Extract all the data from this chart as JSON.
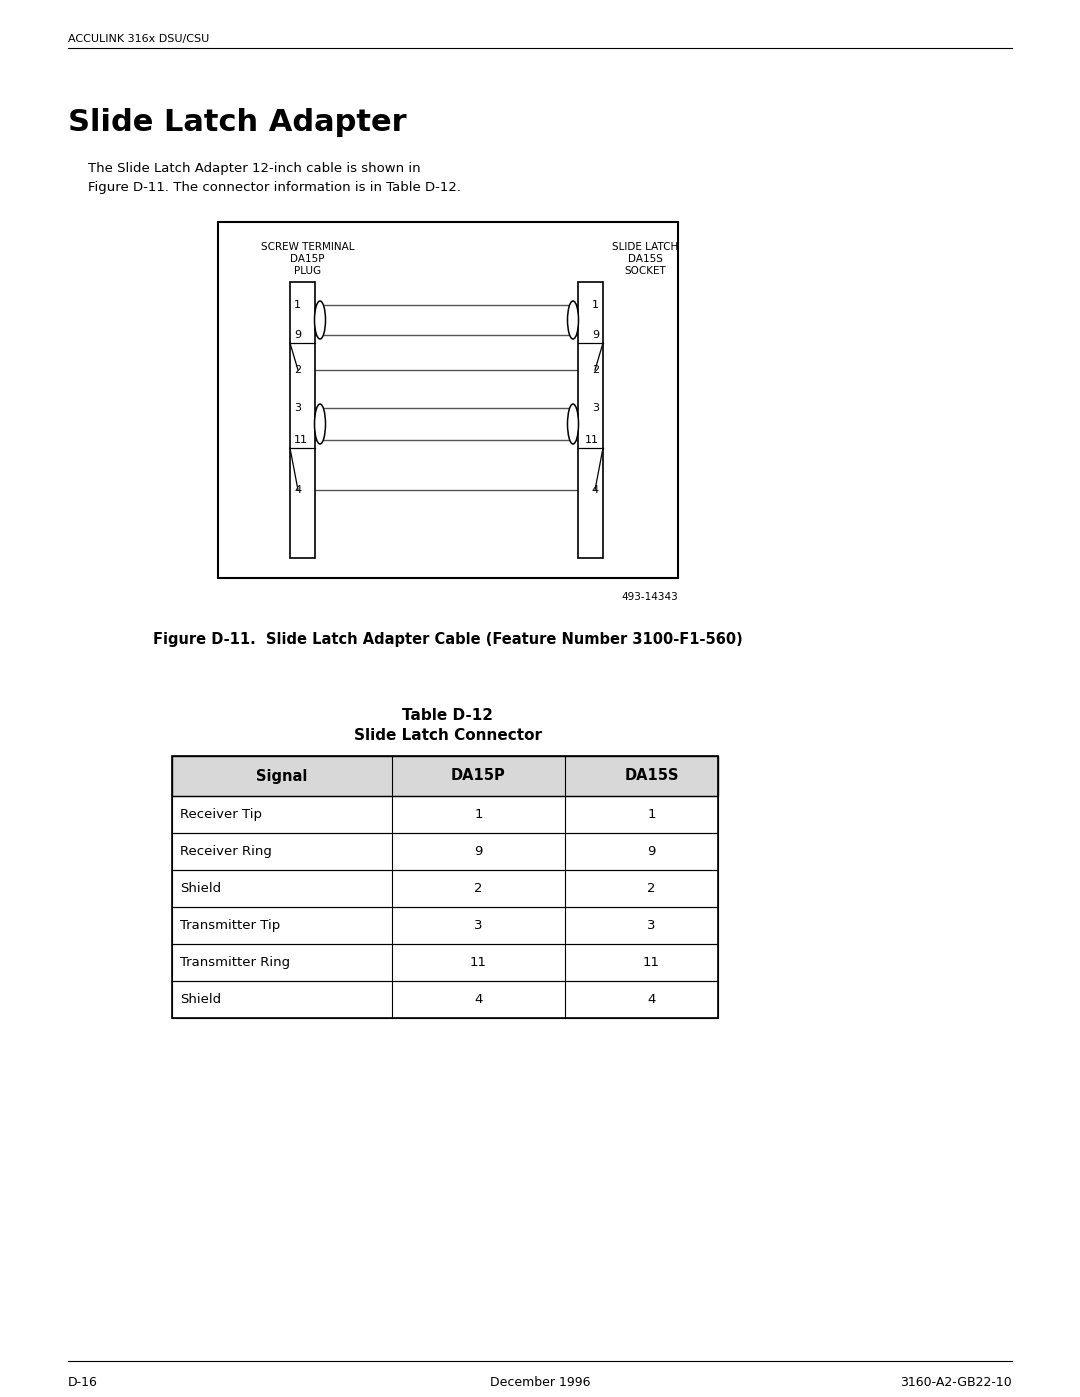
{
  "header_text": "ACCULINK 316x DSU/CSU",
  "section_title": "Slide Latch Adapter",
  "body_text_line1": "The Slide Latch Adapter 12-inch cable is shown in",
  "body_text_line2": "Figure D-11. The connector information is in Table D-12.",
  "figure_caption": "Figure D-11.  Slide Latch Adapter Cable (Feature Number 3100-F1-560)",
  "diagram_part_number": "493-14343",
  "left_label_line1": "SCREW TERMINAL",
  "left_label_line2": "DA15P",
  "left_label_line3": "PLUG",
  "right_label_line1": "SLIDE LATCH",
  "right_label_line2": "DA15S",
  "right_label_line3": "SOCKET",
  "left_pins": [
    "1",
    "9",
    "2",
    "3",
    "11",
    "4"
  ],
  "right_pins": [
    "1",
    "9",
    "2",
    "3",
    "11",
    "4"
  ],
  "table_title_line1": "Table D-12",
  "table_title_line2": "Slide Latch Connector",
  "table_headers": [
    "Signal",
    "DA15P",
    "DA15S"
  ],
  "table_rows": [
    [
      "Receiver Tip",
      "1",
      "1"
    ],
    [
      "Receiver Ring",
      "9",
      "9"
    ],
    [
      "Shield",
      "2",
      "2"
    ],
    [
      "Transmitter Tip",
      "3",
      "3"
    ],
    [
      "Transmitter Ring",
      "11",
      "11"
    ],
    [
      "Shield",
      "4",
      "4"
    ]
  ],
  "footer_left": "D-16",
  "footer_center": "December 1996",
  "footer_right": "3160-A2-GB22-10",
  "bg_color": "#ffffff",
  "text_color": "#000000",
  "line_color": "#000000"
}
